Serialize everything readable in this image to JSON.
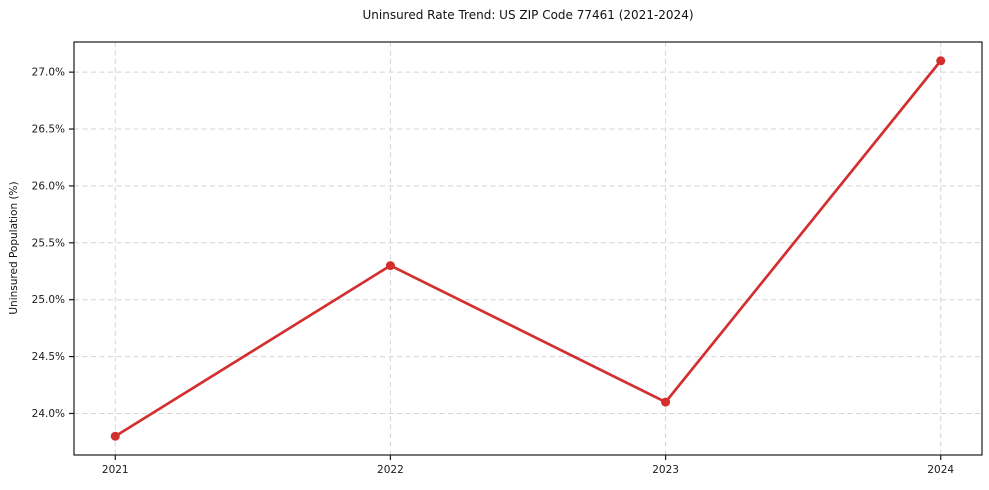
{
  "chart_data": {
    "type": "line",
    "title": "Uninsured Rate Trend: US ZIP Code 77461 (2021-2024)",
    "xlabel": "",
    "ylabel": "Uninsured Population (%)",
    "x": [
      2021,
      2022,
      2023,
      2024
    ],
    "values": [
      23.8,
      25.3,
      24.1,
      27.1
    ],
    "series_name": "Uninsured rate",
    "xlim": [
      2020.85,
      2024.15
    ],
    "ylim": [
      23.635,
      27.265
    ],
    "x_ticks": [
      {
        "value": 2021,
        "label": "2021"
      },
      {
        "value": 2022,
        "label": "2022"
      },
      {
        "value": 2023,
        "label": "2023"
      },
      {
        "value": 2024,
        "label": "2024"
      }
    ],
    "y_ticks": [
      {
        "value": 24.0,
        "label": "24.0%"
      },
      {
        "value": 24.5,
        "label": "24.5%"
      },
      {
        "value": 25.0,
        "label": "25.0%"
      },
      {
        "value": 25.5,
        "label": "25.5%"
      },
      {
        "value": 26.0,
        "label": "26.0%"
      },
      {
        "value": 26.5,
        "label": "26.5%"
      },
      {
        "value": 27.0,
        "label": "27.0%"
      }
    ],
    "grid": true,
    "grid_style": "dashed",
    "legend": "none",
    "colors": {
      "line": "#d32f2f",
      "marker": "#d32f2f",
      "grid": "#d4d4d4",
      "spine": "#1a1a1a",
      "tick_text": "#1a1a1a",
      "background": "#ffffff"
    }
  }
}
